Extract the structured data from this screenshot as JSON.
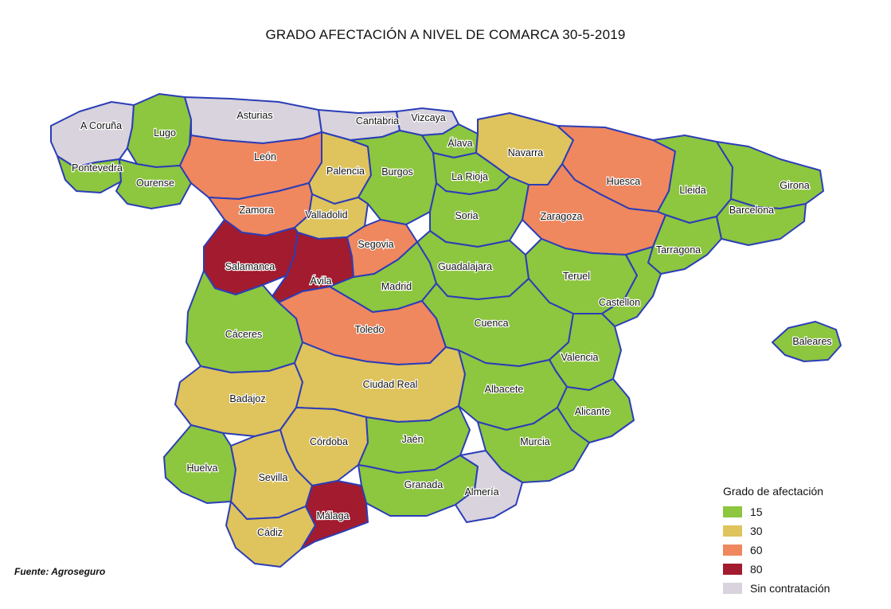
{
  "title": "GRADO AFECTACIÓN A NIVEL DE COMARCA 30-5-2019",
  "source": "Fuente: Agroseguro",
  "colors": {
    "15": "#8dc63f",
    "30": "#dfc35c",
    "60": "#ef875f",
    "80": "#a31b2e",
    "none": "#d8d3dc",
    "border": "#2b3db8"
  },
  "legend": {
    "title": "Grado de afectación",
    "items": [
      {
        "key": "15",
        "label": "15",
        "color": "#8dc63f"
      },
      {
        "key": "30",
        "label": "30",
        "color": "#dfc35c"
      },
      {
        "key": "60",
        "label": "60",
        "color": "#ef875f"
      },
      {
        "key": "80",
        "label": "80",
        "color": "#a31b2e"
      },
      {
        "key": "none",
        "label": "Sin contratación",
        "color": "#d8d3dc"
      }
    ]
  },
  "provinces": [
    {
      "name": "A Coruña",
      "level": "none"
    },
    {
      "name": "Lugo",
      "level": "15"
    },
    {
      "name": "Asturias",
      "level": "none"
    },
    {
      "name": "Cantabria",
      "level": "none"
    },
    {
      "name": "Vizcaya",
      "level": "none"
    },
    {
      "name": "Álava",
      "level": "15"
    },
    {
      "name": "Navarra",
      "level": "30"
    },
    {
      "name": "Pontevedra",
      "level": "15"
    },
    {
      "name": "Ourense",
      "level": "15"
    },
    {
      "name": "León",
      "level": "60"
    },
    {
      "name": "Palencia",
      "level": "30"
    },
    {
      "name": "Burgos",
      "level": "15"
    },
    {
      "name": "La Rioja",
      "level": "15"
    },
    {
      "name": "Huesca",
      "level": "60"
    },
    {
      "name": "Lleida",
      "level": "15"
    },
    {
      "name": "Girona",
      "level": "15"
    },
    {
      "name": "Barcelona",
      "level": "15"
    },
    {
      "name": "Zamora",
      "level": "60"
    },
    {
      "name": "Valladolid",
      "level": "30"
    },
    {
      "name": "Soria",
      "level": "15"
    },
    {
      "name": "Zaragoza",
      "level": "60"
    },
    {
      "name": "Tarragona",
      "level": "15"
    },
    {
      "name": "Salamanca",
      "level": "80"
    },
    {
      "name": "Ávila",
      "level": "80"
    },
    {
      "name": "Segovia",
      "level": "60"
    },
    {
      "name": "Madrid",
      "level": "15"
    },
    {
      "name": "Guadalajara",
      "level": "15"
    },
    {
      "name": "Teruel",
      "level": "15"
    },
    {
      "name": "Castellon",
      "level": "15"
    },
    {
      "name": "Cáceres",
      "level": "15"
    },
    {
      "name": "Toledo",
      "level": "60"
    },
    {
      "name": "Cuenca",
      "level": "15"
    },
    {
      "name": "Valencia",
      "level": "15"
    },
    {
      "name": "Baleares",
      "level": "15"
    },
    {
      "name": "Badajoz",
      "level": "30"
    },
    {
      "name": "Ciudad Real",
      "level": "30"
    },
    {
      "name": "Albacete",
      "level": "15"
    },
    {
      "name": "Alicante",
      "level": "15"
    },
    {
      "name": "Córdoba",
      "level": "30"
    },
    {
      "name": "Jaén",
      "level": "15"
    },
    {
      "name": "Murcia",
      "level": "15"
    },
    {
      "name": "Huelva",
      "level": "15"
    },
    {
      "name": "Sevilla",
      "level": "30"
    },
    {
      "name": "Granada",
      "level": "15"
    },
    {
      "name": "Almería",
      "level": "none"
    },
    {
      "name": "Cádiz",
      "level": "30"
    },
    {
      "name": "Málaga",
      "level": "80"
    }
  ]
}
